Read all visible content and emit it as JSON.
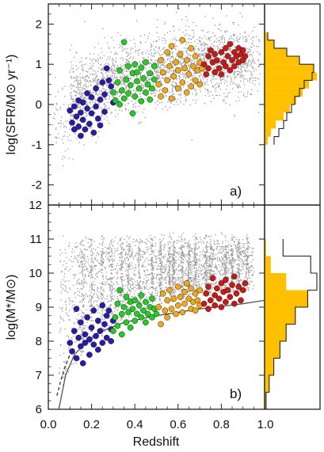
{
  "chart_data": [
    {
      "type": "scatter",
      "panel_label": "a)",
      "ylabel": "log(SFR/M⊙ yr⁻¹)",
      "xlim": [
        0.0,
        1.0
      ],
      "ylim": [
        -2.5,
        2.5
      ],
      "yticks": [
        "2",
        "1",
        "0",
        "-1",
        "-2"
      ],
      "background": {
        "name": "",
        "color": "#9a9a9a",
        "n_points": 2600,
        "relation": "y ≈ 0.1 + 2.6·x − 1.4·x² with scatter ~0.45 dex, concentrated at x 0.1–0.95"
      },
      "series": [
        {
          "name": "",
          "color": "#2a1aa8",
          "points": [
            [
              0.1,
              -0.15
            ],
            [
              0.11,
              -0.45
            ],
            [
              0.12,
              -0.05
            ],
            [
              0.12,
              -0.62
            ],
            [
              0.13,
              -0.3
            ],
            [
              0.14,
              0.1
            ],
            [
              0.14,
              -0.55
            ],
            [
              0.15,
              -0.2
            ],
            [
              0.15,
              -0.78
            ],
            [
              0.16,
              0.05
            ],
            [
              0.16,
              -0.38
            ],
            [
              0.17,
              -0.62
            ],
            [
              0.18,
              -0.1
            ],
            [
              0.18,
              0.28
            ],
            [
              0.19,
              -0.48
            ],
            [
              0.2,
              -0.22
            ],
            [
              0.2,
              0.18
            ],
            [
              0.21,
              -0.7
            ],
            [
              0.22,
              -0.05
            ],
            [
              0.22,
              0.4
            ],
            [
              0.23,
              -0.35
            ],
            [
              0.24,
              0.12
            ],
            [
              0.24,
              -0.52
            ],
            [
              0.25,
              0.55
            ],
            [
              0.26,
              0.25
            ],
            [
              0.26,
              -0.18
            ],
            [
              0.27,
              0.9
            ],
            [
              0.28,
              0.6
            ],
            [
              0.29,
              0.45
            ],
            [
              0.3,
              0.05
            ]
          ]
        },
        {
          "name": "",
          "color": "#22cc22",
          "points": [
            [
              0.3,
              0.3
            ],
            [
              0.31,
              0.1
            ],
            [
              0.32,
              0.55
            ],
            [
              0.33,
              0.0
            ],
            [
              0.33,
              0.85
            ],
            [
              0.34,
              0.35
            ],
            [
              0.35,
              0.15
            ],
            [
              0.35,
              1.55
            ],
            [
              0.36,
              0.62
            ],
            [
              0.37,
              0.28
            ],
            [
              0.37,
              0.95
            ],
            [
              0.38,
              0.48
            ],
            [
              0.39,
              0.78
            ],
            [
              0.39,
              -0.22
            ],
            [
              0.4,
              0.2
            ],
            [
              0.4,
              1.0
            ],
            [
              0.41,
              0.58
            ],
            [
              0.41,
              0.8
            ],
            [
              0.42,
              0.4
            ],
            [
              0.43,
              0.08
            ],
            [
              0.43,
              0.92
            ],
            [
              0.44,
              0.65
            ],
            [
              0.45,
              0.3
            ],
            [
              0.45,
              1.05
            ],
            [
              0.46,
              0.5
            ],
            [
              0.47,
              0.78
            ],
            [
              0.47,
              0.12
            ],
            [
              0.48,
              0.4
            ],
            [
              0.49,
              0.62
            ],
            [
              0.49,
              0.95
            ]
          ]
        },
        {
          "name": "",
          "color": "#f0a818",
          "points": [
            [
              0.51,
              0.5
            ],
            [
              0.52,
              1.1
            ],
            [
              0.52,
              0.2
            ],
            [
              0.53,
              0.8
            ],
            [
              0.54,
              0.35
            ],
            [
              0.55,
              1.3
            ],
            [
              0.55,
              0.6
            ],
            [
              0.56,
              0.95
            ],
            [
              0.57,
              0.15
            ],
            [
              0.57,
              1.45
            ],
            [
              0.58,
              0.7
            ],
            [
              0.59,
              1.05
            ],
            [
              0.6,
              0.4
            ],
            [
              0.6,
              0.85
            ],
            [
              0.61,
              1.25
            ],
            [
              0.62,
              0.55
            ],
            [
              0.62,
              1.6
            ],
            [
              0.63,
              0.9
            ],
            [
              0.64,
              0.3
            ],
            [
              0.64,
              1.1
            ],
            [
              0.65,
              0.75
            ],
            [
              0.66,
              1.4
            ],
            [
              0.66,
              0.45
            ],
            [
              0.67,
              0.95
            ],
            [
              0.68,
              1.2
            ],
            [
              0.68,
              0.6
            ],
            [
              0.69,
              0.85
            ],
            [
              0.7,
              1.05
            ],
            [
              0.7,
              0.5
            ],
            [
              0.71,
              0.9
            ]
          ]
        },
        {
          "name": "",
          "color": "#c81818",
          "points": [
            [
              0.72,
              1.0
            ],
            [
              0.73,
              0.75
            ],
            [
              0.74,
              1.2
            ],
            [
              0.74,
              0.9
            ],
            [
              0.75,
              1.35
            ],
            [
              0.76,
              1.05
            ],
            [
              0.77,
              0.8
            ],
            [
              0.77,
              1.25
            ],
            [
              0.78,
              1.1
            ],
            [
              0.79,
              0.9
            ],
            [
              0.8,
              1.3
            ],
            [
              0.8,
              0.75
            ],
            [
              0.81,
              1.05
            ],
            [
              0.82,
              1.4
            ],
            [
              0.82,
              0.95
            ],
            [
              0.83,
              1.2
            ],
            [
              0.84,
              0.85
            ],
            [
              0.84,
              1.5
            ],
            [
              0.85,
              1.1
            ],
            [
              0.86,
              1.3
            ],
            [
              0.86,
              0.95
            ],
            [
              0.87,
              1.2
            ],
            [
              0.88,
              1.4
            ],
            [
              0.88,
              1.05
            ],
            [
              0.89,
              1.25
            ],
            [
              0.9,
              1.35
            ],
            [
              0.9,
              1.1
            ],
            [
              0.91,
              1.2
            ]
          ]
        }
      ],
      "side_histogram": {
        "bins": [
          -0.9,
          -0.7,
          -0.5,
          -0.3,
          -0.1,
          0.1,
          0.3,
          0.5,
          0.7,
          0.9,
          1.1,
          1.3,
          1.5,
          1.7
        ],
        "filled_counts": [
          2,
          4,
          7,
          12,
          16,
          20,
          24,
          28,
          33,
          31,
          22,
          14,
          6,
          2
        ],
        "outline_counts": [
          6,
          9,
          12,
          14,
          17,
          19,
          22,
          25,
          30,
          31,
          22,
          14,
          6,
          2
        ],
        "filled_color": "#ffc000",
        "outline_color": "#222222"
      }
    },
    {
      "type": "scatter",
      "panel_label": "b)",
      "xlabel": "Redshift",
      "ylabel": "log(M*/M⊙)",
      "xlim": [
        0.0,
        1.0
      ],
      "ylim": [
        6.0,
        12.0
      ],
      "xticks": [
        "0.0",
        "0.2",
        "0.4",
        "0.6",
        "0.8",
        "1.0"
      ],
      "yticks": [
        "12",
        "11",
        "10",
        "9",
        "8",
        "7",
        "6"
      ],
      "background": {
        "name": "",
        "color": "#9a9a9a",
        "n_points": 3600,
        "relation": "stellar mass between the completeness curve and ~11.2, with vertical redshift-spike columns"
      },
      "limit_curves": [
        {
          "name": "",
          "style": "solid",
          "color": "#555555",
          "x": [
            0.05,
            0.08,
            0.12,
            0.18,
            0.25,
            0.35,
            0.5,
            0.7,
            0.9,
            1.0
          ],
          "y": [
            6.05,
            7.0,
            7.6,
            8.0,
            8.3,
            8.55,
            8.75,
            8.95,
            9.1,
            9.2
          ]
        },
        {
          "name": "",
          "style": "dashed",
          "color": "#333333",
          "x": [
            0.04,
            0.06,
            0.08,
            0.1
          ],
          "y": [
            6.4,
            6.9,
            7.3,
            7.6
          ]
        }
      ],
      "series": [
        {
          "name": "",
          "color": "#2a1aa8",
          "points": [
            [
              0.1,
              7.95
            ],
            [
              0.11,
              7.7
            ],
            [
              0.12,
              8.3
            ],
            [
              0.13,
              8.95
            ],
            [
              0.13,
              7.5
            ],
            [
              0.14,
              8.1
            ],
            [
              0.15,
              7.85
            ],
            [
              0.15,
              8.55
            ],
            [
              0.16,
              7.35
            ],
            [
              0.17,
              8.2
            ],
            [
              0.17,
              7.95
            ],
            [
              0.18,
              8.7
            ],
            [
              0.19,
              8.05
            ],
            [
              0.19,
              7.6
            ],
            [
              0.2,
              8.4
            ],
            [
              0.21,
              7.9
            ],
            [
              0.21,
              8.9
            ],
            [
              0.22,
              8.15
            ],
            [
              0.23,
              7.75
            ],
            [
              0.23,
              8.6
            ],
            [
              0.24,
              8.3
            ],
            [
              0.25,
              9.05
            ],
            [
              0.25,
              7.95
            ],
            [
              0.26,
              8.5
            ],
            [
              0.27,
              8.75
            ],
            [
              0.27,
              8.1
            ],
            [
              0.28,
              8.9
            ],
            [
              0.29,
              8.35
            ],
            [
              0.29,
              8.0
            ],
            [
              0.3,
              8.6
            ]
          ]
        },
        {
          "name": "",
          "color": "#22cc22",
          "points": [
            [
              0.3,
              8.3
            ],
            [
              0.31,
              8.7
            ],
            [
              0.32,
              9.1
            ],
            [
              0.32,
              8.45
            ],
            [
              0.33,
              9.5
            ],
            [
              0.34,
              8.8
            ],
            [
              0.34,
              8.2
            ],
            [
              0.35,
              9.0
            ],
            [
              0.36,
              9.3
            ],
            [
              0.36,
              8.55
            ],
            [
              0.37,
              8.85
            ],
            [
              0.38,
              9.15
            ],
            [
              0.38,
              8.4
            ],
            [
              0.39,
              8.95
            ],
            [
              0.4,
              9.2
            ],
            [
              0.4,
              8.6
            ],
            [
              0.41,
              8.8
            ],
            [
              0.42,
              9.05
            ],
            [
              0.43,
              8.7
            ],
            [
              0.43,
              9.35
            ],
            [
              0.44,
              8.9
            ],
            [
              0.45,
              8.55
            ],
            [
              0.45,
              9.15
            ],
            [
              0.46,
              8.8
            ],
            [
              0.47,
              9.0
            ],
            [
              0.48,
              8.7
            ],
            [
              0.48,
              9.25
            ],
            [
              0.49,
              8.95
            ],
            [
              0.5,
              8.8
            ]
          ]
        },
        {
          "name": "",
          "color": "#f0a818",
          "points": [
            [
              0.51,
              9.0
            ],
            [
              0.52,
              8.5
            ],
            [
              0.53,
              9.4
            ],
            [
              0.54,
              8.9
            ],
            [
              0.55,
              9.2
            ],
            [
              0.55,
              8.7
            ],
            [
              0.56,
              9.5
            ],
            [
              0.57,
              8.95
            ],
            [
              0.58,
              9.25
            ],
            [
              0.59,
              8.8
            ],
            [
              0.6,
              9.6
            ],
            [
              0.6,
              9.05
            ],
            [
              0.61,
              9.3
            ],
            [
              0.62,
              8.85
            ],
            [
              0.63,
              9.45
            ],
            [
              0.63,
              9.1
            ],
            [
              0.64,
              9.7
            ],
            [
              0.65,
              9.25
            ],
            [
              0.66,
              8.95
            ],
            [
              0.66,
              9.55
            ],
            [
              0.67,
              9.15
            ],
            [
              0.68,
              9.4
            ],
            [
              0.68,
              8.9
            ],
            [
              0.69,
              9.2
            ],
            [
              0.7,
              9.5
            ],
            [
              0.7,
              9.05
            ]
          ]
        },
        {
          "name": "",
          "color": "#c81818",
          "points": [
            [
              0.72,
              9.1
            ],
            [
              0.73,
              9.4
            ],
            [
              0.74,
              8.95
            ],
            [
              0.74,
              9.6
            ],
            [
              0.75,
              9.2
            ],
            [
              0.76,
              9.85
            ],
            [
              0.77,
              9.35
            ],
            [
              0.77,
              9.05
            ],
            [
              0.78,
              9.55
            ],
            [
              0.79,
              9.25
            ],
            [
              0.8,
              9.7
            ],
            [
              0.8,
              9.0
            ],
            [
              0.81,
              9.45
            ],
            [
              0.82,
              9.8
            ],
            [
              0.82,
              9.15
            ],
            [
              0.83,
              9.5
            ],
            [
              0.84,
              9.3
            ],
            [
              0.85,
              9.65
            ],
            [
              0.86,
              9.1
            ],
            [
              0.86,
              9.9
            ],
            [
              0.87,
              9.4
            ],
            [
              0.88,
              9.6
            ],
            [
              0.89,
              9.2
            ],
            [
              0.9,
              9.5
            ],
            [
              0.91,
              9.7
            ]
          ]
        }
      ],
      "side_histogram": {
        "bins": [
          6.25,
          6.75,
          7.25,
          7.75,
          8.25,
          8.75,
          9.25,
          9.75,
          10.25,
          10.75
        ],
        "filled_counts": [
          1,
          3,
          6,
          10,
          14,
          20,
          28,
          14,
          4,
          1
        ],
        "outline_counts": [
          1,
          3,
          6,
          10,
          14,
          20,
          28,
          34,
          30,
          12
        ],
        "filled_color": "#ffc000",
        "outline_color": "#222222"
      }
    }
  ]
}
